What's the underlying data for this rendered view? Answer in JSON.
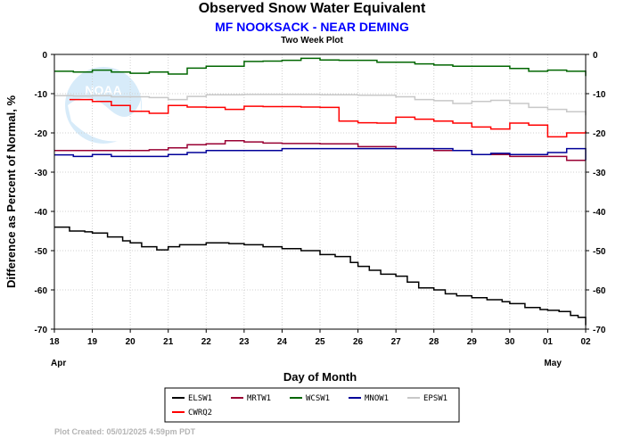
{
  "header": {
    "title": "Observed Snow Water Equivalent",
    "subtitle": "MF NOOKSACK - NEAR DEMING",
    "plot_type": "Two Week Plot"
  },
  "footer": {
    "created": "Plot Created: 05/01/2025 4:59pm PDT"
  },
  "chart_data": {
    "type": "line",
    "title": "Observed Snow Water Equivalent",
    "subtitle": "MF NOOKSACK - NEAR DEMING",
    "xlabel": "Day of Month",
    "ylabel": "Difference as Percent of Normal, %",
    "x_ticks": [
      "18",
      "19",
      "20",
      "21",
      "22",
      "23",
      "24",
      "25",
      "26",
      "27",
      "28",
      "29",
      "30",
      "01",
      "02"
    ],
    "month_labels": [
      {
        "label": "Apr",
        "at": "18"
      },
      {
        "label": "May",
        "at": "01"
      }
    ],
    "xlim": [
      "Apr 18",
      "May 02"
    ],
    "ylim": [
      -70,
      0
    ],
    "y_ticks": [
      0,
      -10,
      -20,
      -30,
      -40,
      -50,
      -60,
      -70
    ],
    "grid": true,
    "legend_position": "bottom",
    "series": [
      {
        "name": "ELSW1",
        "color": "#000000",
        "x": [
          0,
          0.4,
          0.8,
          1.0,
          1.4,
          1.8,
          2.0,
          2.3,
          2.7,
          3.0,
          3.3,
          3.6,
          4.0,
          4.6,
          5.0,
          5.5,
          6.0,
          6.5,
          7.0,
          7.4,
          7.8,
          8.0,
          8.3,
          8.6,
          9.0,
          9.3,
          9.6,
          10.0,
          10.3,
          10.6,
          11.0,
          11.4,
          11.8,
          12.0,
          12.4,
          12.8,
          13.0,
          13.3,
          13.6,
          13.8,
          14.0
        ],
        "y": [
          -44,
          -45,
          -45.2,
          -45.5,
          -46.5,
          -47.5,
          -48,
          -49,
          -49.8,
          -49,
          -48.5,
          -48.5,
          -48,
          -48.2,
          -48.5,
          -49,
          -49.5,
          -50,
          -51,
          -51.5,
          -53,
          -54,
          -55,
          -56,
          -56.5,
          -58,
          -59.5,
          -60,
          -61,
          -61.5,
          -62,
          -62.5,
          -63,
          -63.5,
          -64.5,
          -65,
          -65.2,
          -65.5,
          -66.5,
          -67,
          -69
        ]
      },
      {
        "name": "MRTW1",
        "color": "#990033",
        "x": [
          0,
          1.0,
          2.0,
          2.5,
          3.0,
          3.5,
          4.0,
          4.5,
          5.0,
          5.5,
          6.0,
          7.0,
          8.0,
          9.0,
          10.0,
          11.0,
          12.0,
          13.0,
          13.5,
          14.0
        ],
        "y": [
          -24.5,
          -24.5,
          -24.5,
          -24.3,
          -23.8,
          -23,
          -22.8,
          -22,
          -22.3,
          -22.6,
          -22.7,
          -22.8,
          -23.5,
          -24,
          -24.5,
          -25.5,
          -26,
          -26,
          -27,
          -27
        ]
      },
      {
        "name": "WCSW1",
        "color": "#006600",
        "x": [
          0,
          0.5,
          1.0,
          1.5,
          2.0,
          2.5,
          3.0,
          3.5,
          4.0,
          4.5,
          5.0,
          5.5,
          6.0,
          6.5,
          7.0,
          7.5,
          8.0,
          8.5,
          9.0,
          9.5,
          10.0,
          10.5,
          11.0,
          11.5,
          12.0,
          12.5,
          13.0,
          13.5,
          14.0
        ],
        "y": [
          -4.3,
          -4.5,
          -4,
          -4.5,
          -4.8,
          -4.5,
          -5,
          -3.5,
          -3,
          -3,
          -1.8,
          -1.7,
          -1.5,
          -1,
          -1.4,
          -1.5,
          -1.5,
          -2,
          -2,
          -2.4,
          -2.7,
          -3,
          -3,
          -3,
          -3.6,
          -4.3,
          -4,
          -4.3,
          -5.5
        ]
      },
      {
        "name": "MNOW1",
        "color": "#000099",
        "x": [
          0,
          0.5,
          1.0,
          1.5,
          2.0,
          2.5,
          3.0,
          3.5,
          4.0,
          5.0,
          6.0,
          7.0,
          8.0,
          9.0,
          9.5,
          10.0,
          10.5,
          11.0,
          11.5,
          12.0,
          12.5,
          13.0,
          13.5,
          14.0
        ],
        "y": [
          -25.6,
          -26,
          -25.5,
          -26,
          -26,
          -26,
          -25.5,
          -25,
          -24.5,
          -24.5,
          -24,
          -24,
          -24,
          -24,
          -24,
          -24,
          -24.5,
          -25.5,
          -25.2,
          -25.5,
          -25.5,
          -25,
          -24,
          -27
        ]
      },
      {
        "name": "EPSW1",
        "color": "#c8c8c8",
        "x": [
          0,
          0.5,
          1.0,
          1.5,
          2.0,
          2.5,
          3.0,
          3.5,
          4.0,
          5.0,
          6.0,
          7.0,
          8.0,
          9.0,
          9.5,
          10.0,
          10.5,
          11.0,
          11.5,
          12.0,
          12.5,
          13.0,
          13.5,
          14.0
        ],
        "y": [
          -10.5,
          -10.6,
          -10.5,
          -10.8,
          -10.8,
          -11,
          -11.5,
          -10.7,
          -10.3,
          -10.2,
          -10.2,
          -10.3,
          -10.4,
          -10.8,
          -11.5,
          -11.8,
          -12.5,
          -12,
          -11.7,
          -12.5,
          -13.5,
          -14,
          -14.6,
          -15.5
        ]
      },
      {
        "name": "CWRQ2",
        "color": "#ff0000",
        "x": [
          0.4,
          1.0,
          1.5,
          2.0,
          2.5,
          3.0,
          3.5,
          4.0,
          4.5,
          5.0,
          5.5,
          6.0,
          6.5,
          7.0,
          7.5,
          8.0,
          8.5,
          9.0,
          9.5,
          10.0,
          10.5,
          11.0,
          11.5,
          12.0,
          12.5,
          13.0,
          13.5,
          14.0
        ],
        "y": [
          -11.5,
          -12,
          -13,
          -14.5,
          -15,
          -13,
          -13.4,
          -13.5,
          -14,
          -13.2,
          -13.3,
          -13.3,
          -13.4,
          -13.5,
          -17,
          -17.4,
          -17.5,
          -16,
          -16.5,
          -17,
          -17.5,
          -18.5,
          -19,
          -17.5,
          -18,
          -21,
          -20,
          -19.5
        ]
      }
    ]
  }
}
